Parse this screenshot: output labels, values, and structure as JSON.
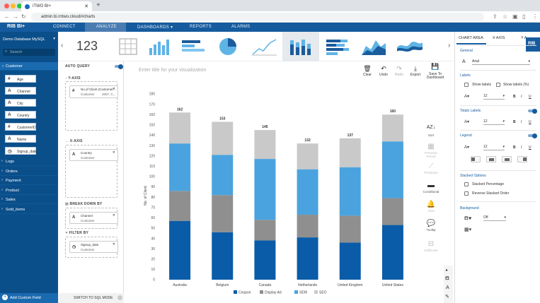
{
  "browser": {
    "tab_title": "iTWO BI+",
    "url": "admin.bi.rntwo.cloud/#charts"
  },
  "appbar": {
    "logo": "RIB  BI+",
    "menu": [
      "CONNECT",
      "ANALYZE",
      "DASHBOARDS ▾",
      "REPORTS",
      "ALARMS"
    ]
  },
  "left": {
    "database": "Demo Database MySQL",
    "search_placeholder": "Search",
    "active_table": "Customer",
    "fields": [
      {
        "icon": "#",
        "label": "Age"
      },
      {
        "icon": "A",
        "label": "Channel"
      },
      {
        "icon": "A",
        "label": "City"
      },
      {
        "icon": "A",
        "label": "Country"
      },
      {
        "icon": "#",
        "label": "CustomerID"
      },
      {
        "icon": "A",
        "label": "Name"
      },
      {
        "icon": "◷",
        "label": "Signup_date"
      }
    ],
    "tables": [
      "Logs",
      "Orders",
      "Payment",
      "Product",
      "Sales",
      "Sold_items"
    ],
    "add_custom_field": "Add Custom Field"
  },
  "mid": {
    "auto_query": "AUTO QUERY",
    "y_axis": "Y-AXIS",
    "y_field": {
      "name": "No.of Client (Customer...",
      "sub": "Customer",
      "extra": "2007, C..."
    },
    "x_axis": "X-AXIS",
    "x_field": {
      "name": "Country",
      "sub": "Customer"
    },
    "break_down": "BREAK DOWN BY",
    "bd_field": {
      "name": "Channel",
      "sub": "Customer"
    },
    "filter_by": "FILTER BY",
    "filter_field": {
      "name": "Signup_date",
      "sub": "Customer"
    },
    "sql_mode": "SWITCH TO SQL MODE"
  },
  "typesbar": {
    "number_label": "123"
  },
  "toolbar": {
    "title_placeholder": "Enter title for your visualization",
    "clear": "Clear",
    "undo": "Undo",
    "redo": "Redo",
    "export": "Export",
    "save": "Save To\nDashboard"
  },
  "right_tools": {
    "sort": "Sort",
    "previous_period": "Previous Period",
    "predictive": "Predictive",
    "conditional": "Conditional",
    "alert": "Alert",
    "tooltip": "Tooltip",
    "drilldown": "DrillDown"
  },
  "settings": {
    "tabs": [
      "CHART AREA",
      "X AXIS",
      "Y A"
    ],
    "general": "General",
    "font": "Arial",
    "labels": "Labels",
    "show_labels": "Show labels",
    "show_labels_pct": "Show labels (%)",
    "font_size": "12",
    "totals_labels": "Totals Labels",
    "legend": "Legend",
    "stacked_options": "Stacked Options",
    "stacked_pct": "Stacked Percentage",
    "reverse_stacked": "Reverse Stacked Order",
    "background": "Background",
    "bg_value": "Off",
    "bold": "B",
    "italic": "I",
    "underline": "U",
    "font_letter": "A"
  },
  "colors": {
    "coupon": "#0b5ca8",
    "display_ad": "#8f8f8f",
    "sem": "#4aa3de",
    "seo": "#c9c9c9",
    "brand": "#155b9e"
  },
  "chart_data": {
    "type": "bar",
    "stacked": true,
    "categories": [
      "Australia",
      "Belgium",
      "Canada",
      "Netherlands",
      "United Kingdom",
      "United States"
    ],
    "ylabel": "No. of Client",
    "ylim": [
      0,
      180
    ],
    "yticks": [
      0,
      10,
      20,
      30,
      40,
      50,
      60,
      70,
      80,
      90,
      100,
      110,
      120,
      130,
      140,
      150,
      160,
      170,
      180
    ],
    "totals": [
      162,
      153,
      145,
      132,
      137,
      160
    ],
    "series": [
      {
        "name": "Coupon",
        "color": "#0b5ca8",
        "values": [
          57,
          46,
          38,
          41,
          36,
          53
        ]
      },
      {
        "name": "Display Ad",
        "color": "#8f8f8f",
        "values": [
          29,
          36,
          20,
          22,
          26,
          26
        ]
      },
      {
        "name": "SEM",
        "color": "#4aa3de",
        "values": [
          46,
          39,
          59,
          44,
          47,
          55
        ]
      },
      {
        "name": "SEO",
        "color": "#c9c9c9",
        "values": [
          30,
          32,
          28,
          25,
          28,
          26
        ]
      }
    ],
    "legend_position": "bottom",
    "grid": false
  }
}
